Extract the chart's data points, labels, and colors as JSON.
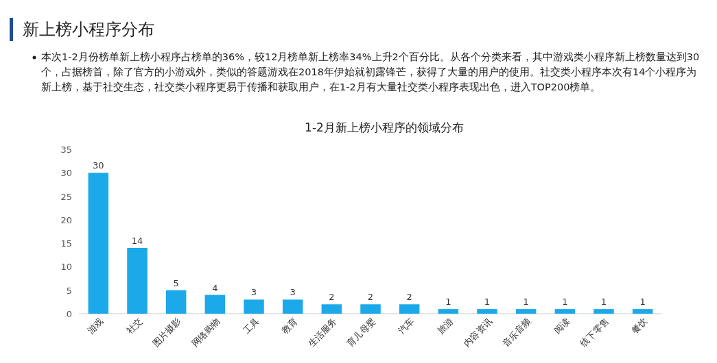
{
  "chart_data": {
    "type": "bar",
    "title": "新上榜小程序分布",
    "subtitle": "1-2月新上榜小程序的领域分布",
    "annotations": [
      "本次1-2月份榜单新上榜小程序占榜单的36%，较12月榜单新上榜率34%上升2个百分比。从各个分类来看，其中游戏类小程序新上榜数量达到30个，占据榜首，除了官方的小游戏外，类似的答题游戏在2018年伊始就初露锋芒，获得了大量的用户的使用。社交类小程序本次有14个小程序为新上榜，基于社交生态，社交类小程序更易于传播和获取用户，在1-2月有大量社交类小程序表现出色，进入TOP200榜单。"
    ],
    "categories": [
      "游戏",
      "社交",
      "图片摄影",
      "网络购物",
      "工具",
      "教育",
      "生活服务",
      "育儿母婴",
      "汽车",
      "旅游",
      "内容资讯",
      "音乐音频",
      "阅读",
      "线下零售",
      "餐饮"
    ],
    "values": [
      30,
      14,
      5,
      4,
      3,
      3,
      2,
      2,
      2,
      1,
      1,
      1,
      1,
      1,
      1
    ],
    "color": "#1ba9ea",
    "ylim": [
      0,
      35
    ],
    "yticks": [
      0,
      5,
      10,
      15,
      20,
      25,
      30,
      35
    ],
    "data_labels": true
  }
}
